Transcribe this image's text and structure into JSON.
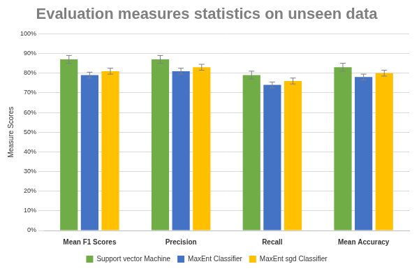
{
  "chart_data": {
    "type": "bar",
    "title": "Evaluation measures statistics on unseen data",
    "y_label": "Measure Scores",
    "categories": [
      "Mean F1 Scores",
      "Precision",
      "Recall",
      "Mean Accuracy"
    ],
    "series": [
      {
        "name": "Support vector Machine",
        "color": "#70ad47",
        "values": [
          87,
          87,
          79,
          83
        ],
        "errors": [
          2,
          2,
          2,
          2
        ]
      },
      {
        "name": "MaxEnt Classifier",
        "color": "#4472c4",
        "values": [
          79,
          81,
          74,
          78
        ],
        "errors": [
          1.5,
          1.5,
          1.5,
          1.5
        ]
      },
      {
        "name": "MaxEnt sgd Classifier",
        "color": "#ffc000",
        "values": [
          81,
          83,
          76,
          80
        ],
        "errors": [
          1.5,
          1.5,
          1.5,
          1.5
        ]
      }
    ],
    "ylim": [
      0,
      100
    ],
    "yticks": [
      {
        "value": 0,
        "label": "0%"
      },
      {
        "value": 10,
        "label": "10%"
      },
      {
        "value": 20,
        "label": "20%"
      },
      {
        "value": 30,
        "label": "30%"
      },
      {
        "value": 40,
        "label": "40%"
      },
      {
        "value": 50,
        "label": "50%"
      },
      {
        "value": 60,
        "label": "60%"
      },
      {
        "value": 70,
        "label": "70%"
      },
      {
        "value": 80,
        "label": "80%"
      },
      {
        "value": 90,
        "label": "90%"
      },
      {
        "value": 100,
        "label": "100%"
      }
    ],
    "grid": true,
    "legend": "bottom"
  }
}
